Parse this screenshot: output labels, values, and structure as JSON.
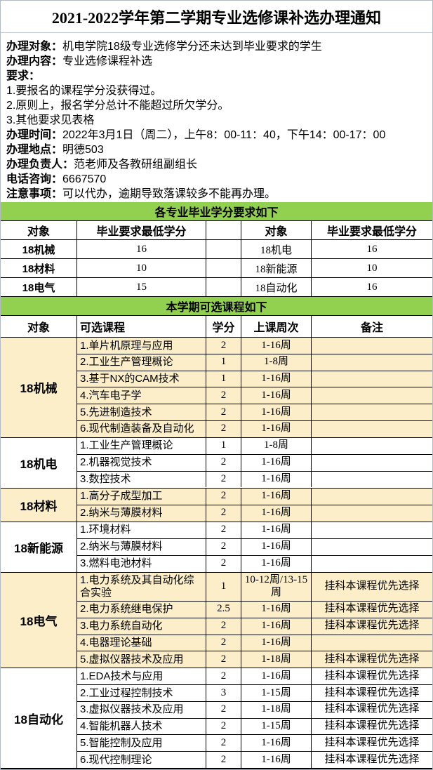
{
  "title": "2021-2022学年第二学期专业选修课补选办理通知",
  "colors": {
    "green": "#92D050",
    "cream": "#FBEEC8",
    "table_border": "#000000"
  },
  "info": {
    "lines": [
      {
        "label": "办理对象：",
        "text": "机电学院18级专业选修学分还未达到毕业要求的学生"
      },
      {
        "label": "办理内容：",
        "text": "专业选修课程补选"
      },
      {
        "label": "要求：",
        "text": ""
      },
      {
        "label": "",
        "text": "1.要报名的课程学分没获得过。"
      },
      {
        "label": "",
        "text": "2.原则上，报名学分总计不能超过所欠学分。"
      },
      {
        "label": "",
        "text": "3.其他要求见表格"
      },
      {
        "label": "办理时间：",
        "text": "2022年3月1日（周二），上午8：00-11：40，下午14：00-17：00"
      },
      {
        "label": "办理地点：",
        "text": "明德503"
      },
      {
        "label": "办理负责人：",
        "text": "范老师及各教研组副组长"
      },
      {
        "label": "电话咨询：",
        "text": "6667570"
      },
      {
        "label": "注意事项：",
        "text": "可以代办，逾期导致落课较多不能再办理。"
      }
    ]
  },
  "credit_section": {
    "header": "各专业毕业学分要求如下",
    "columns": [
      "对象",
      "毕业要求最低学分",
      "",
      "对象",
      "毕业要求最低学分"
    ],
    "rows": [
      {
        "left_major": "18机械",
        "left_credits": "16",
        "right_major": "18机电",
        "right_credits": "16"
      },
      {
        "left_major": "18材料",
        "left_credits": "10",
        "right_major": "18新能源",
        "right_credits": "10"
      },
      {
        "left_major": "18电气",
        "left_credits": "15",
        "right_major": "18自动化",
        "right_credits": "16"
      }
    ]
  },
  "course_section": {
    "header": "本学期可选课程如下",
    "columns": [
      "对象",
      "可选课程",
      "学分",
      "上课周次",
      "备注"
    ],
    "groups": [
      {
        "major": "18机械",
        "shade": "cream",
        "courses": [
          {
            "name": "1.单片机原理与应用",
            "credits": "2",
            "weeks": "1-16周",
            "note": ""
          },
          {
            "name": "2.工业生产管理概论",
            "credits": "1",
            "weeks": "1-8周",
            "note": ""
          },
          {
            "name": "3.基于NX的CAM技术",
            "credits": "1",
            "weeks": "1-16周",
            "note": ""
          },
          {
            "name": "4.汽车电子学",
            "credits": "2",
            "weeks": "1-16周",
            "note": ""
          },
          {
            "name": "5.先进制造技术",
            "credits": "2",
            "weeks": "1-16周",
            "note": ""
          },
          {
            "name": "6.现代制造装备及自动化",
            "credits": "2",
            "weeks": "1-16周",
            "note": ""
          }
        ]
      },
      {
        "major": "18机电",
        "shade": "white",
        "courses": [
          {
            "name": "1.工业生产管理概论",
            "credits": "1",
            "weeks": "1-8周",
            "note": ""
          },
          {
            "name": "2.机器视觉技术",
            "credits": "2",
            "weeks": "1-16周",
            "note": ""
          },
          {
            "name": "3.数控技术",
            "credits": "2",
            "weeks": "1-16周",
            "note": ""
          }
        ]
      },
      {
        "major": "18材料",
        "shade": "cream",
        "courses": [
          {
            "name": "1.高分子成型加工",
            "credits": "2",
            "weeks": "1-16周",
            "note": ""
          },
          {
            "name": "2.纳米与薄膜材料",
            "credits": "2",
            "weeks": "1-16周",
            "note": ""
          }
        ]
      },
      {
        "major": "18新能源",
        "shade": "white",
        "courses": [
          {
            "name": "1.环境材料",
            "credits": "2",
            "weeks": "1-16周",
            "note": ""
          },
          {
            "name": "2.纳米与薄膜材料",
            "credits": "2",
            "weeks": "1-16周",
            "note": ""
          },
          {
            "name": "3.燃料电池材料",
            "credits": "2",
            "weeks": "1-16周",
            "note": ""
          }
        ]
      },
      {
        "major": "18电气",
        "shade": "cream",
        "courses": [
          {
            "name": "1.电力系统及其自动化综合实验",
            "credits": "1",
            "weeks": "10-12周/13-15周",
            "note": "挂科本课程优先选择",
            "tall": true
          },
          {
            "name": "2.电力系统继电保护",
            "credits": "2.5",
            "weeks": "1-16周",
            "note": "挂科本课程优先选择"
          },
          {
            "name": "3.电力系统自动化",
            "credits": "2",
            "weeks": "1-16周",
            "note": "挂科本课程优先选择"
          },
          {
            "name": "4.电器理论基础",
            "credits": "2",
            "weeks": "1-16周",
            "note": ""
          },
          {
            "name": "5.虚拟仪器技术及应用",
            "credits": "2",
            "weeks": "1-18周",
            "note": "挂科本课程优先选择"
          }
        ]
      },
      {
        "major": "18自动化",
        "shade": "white",
        "courses": [
          {
            "name": "1.EDA技术与应用",
            "credits": "2",
            "weeks": "1-16周",
            "note": "挂科本课程优先选择"
          },
          {
            "name": "2.工业过程控制技术",
            "credits": "3",
            "weeks": "1-15周",
            "note": "挂科本课程优先选择"
          },
          {
            "name": "3.虚拟仪器技术及应用",
            "credits": "2",
            "weeks": "1-18周",
            "note": "挂科本课程优先选择"
          },
          {
            "name": "4.智能机器人技术",
            "credits": "2",
            "weeks": "1-15周",
            "note": "挂科本课程优先选择"
          },
          {
            "name": "5.智能控制及应用",
            "credits": "2",
            "weeks": "1-16周",
            "note": "挂科本课程优先选择"
          },
          {
            "name": "6.现代控制理论",
            "credits": "2",
            "weeks": "1-16周",
            "note": "挂科本课程优先选择"
          }
        ]
      }
    ]
  }
}
